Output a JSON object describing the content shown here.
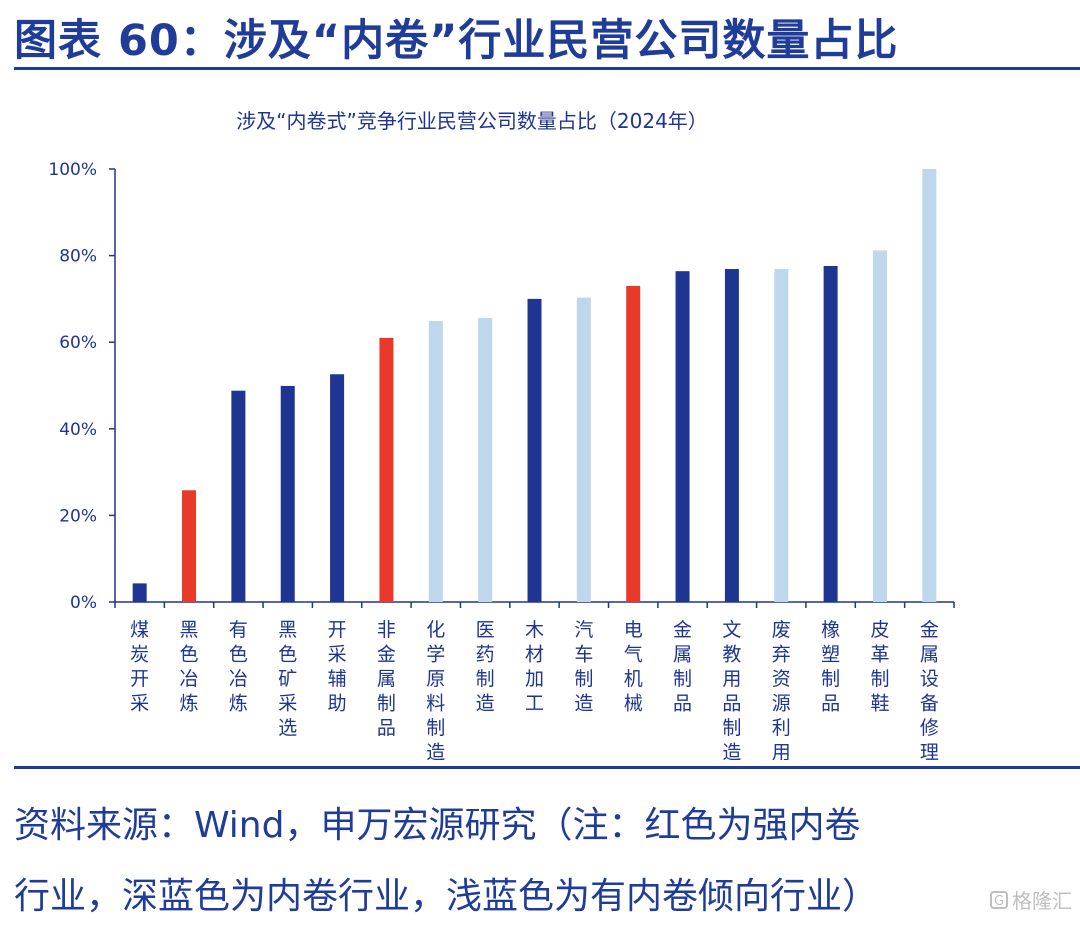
{
  "figure": {
    "title": "图表 60：涉及“内卷”行业民营公司数量占比"
  },
  "chart_data": {
    "type": "bar",
    "title": "涉及“内卷式”竞争行业民营公司数量占比（2024年）",
    "xlabel": "",
    "ylabel": "",
    "ylim": [
      0,
      100
    ],
    "yticks": [
      "0%",
      "20%",
      "40%",
      "60%",
      "80%",
      "100%"
    ],
    "grid": false,
    "categories": [
      "煤炭开采",
      "黑色冶炼",
      "有色冶炼",
      "黑色矿采选",
      "开采辅助",
      "非金属制品",
      "化学原料制造",
      "医药制造",
      "木材加工",
      "汽车制造",
      "电气机械",
      "金属制品",
      "文教用品制造",
      "废弃资源利用",
      "橡塑制品",
      "皮革制鞋",
      "金属设备修理"
    ],
    "values": [
      4.3,
      25.8,
      48.8,
      49.9,
      52.6,
      61.0,
      64.9,
      65.6,
      70.0,
      70.3,
      73.0,
      76.4,
      76.9,
      76.9,
      77.6,
      81.2,
      100.0
    ],
    "bar_groups": [
      "light",
      "red",
      "dark",
      "dark",
      "dark",
      "red",
      "light",
      "light",
      "dark",
      "light",
      "red",
      "dark",
      "dark",
      "light",
      "dark",
      "light",
      "light"
    ],
    "colors": {
      "red": "#e8392b",
      "dark": "#1f3592",
      "light": "#bfd7ec",
      "axis": "#1f3592",
      "text": "#1f3592",
      "first_bar": "#1f3592"
    }
  },
  "footnote": {
    "line1": "资料来源：Wind，申万宏源研究（注：红色为强内卷",
    "line2": "行业，深蓝色为内卷行业，浅蓝色为有内卷倾向行业）"
  },
  "watermark": {
    "icon": "gelonghui-logo-icon",
    "icon_glyph": "G",
    "text": "格隆汇"
  }
}
